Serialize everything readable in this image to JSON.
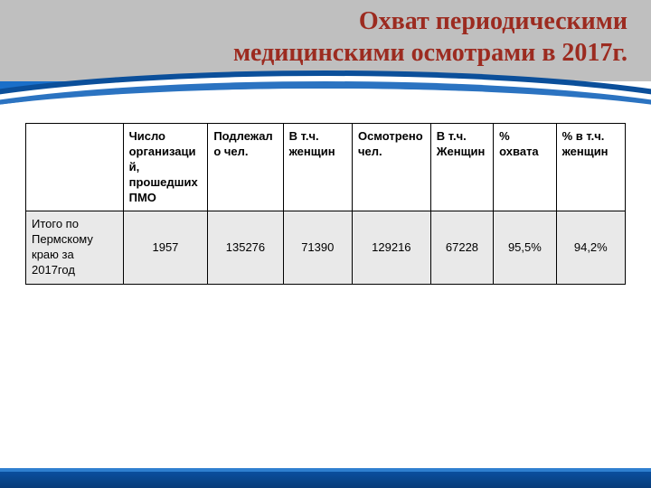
{
  "title": {
    "line1": "Охват периодическими",
    "line2": "медицинскими осмотрами в 2017г."
  },
  "table": {
    "columns": [
      "",
      "Число организаций, прошедших ПМО",
      "Подлежало   чел.",
      "В т.ч. женщин",
      "Осмотрено  чел.",
      "В т.ч. Женщин",
      "% охвата",
      "% в т.ч. женщин"
    ],
    "row": {
      "label": "Итого по Пермскому краю за 2017год",
      "values": [
        "1957",
        "135276",
        "71390",
        "129216",
        "67228",
        "95,5%",
        "94,2%"
      ]
    }
  },
  "colors": {
    "title_text": "#9c2b20",
    "title_bg": "#bfbfbf",
    "accent_blue": "#0b4f9a",
    "row_bg": "#e9e9e9"
  }
}
